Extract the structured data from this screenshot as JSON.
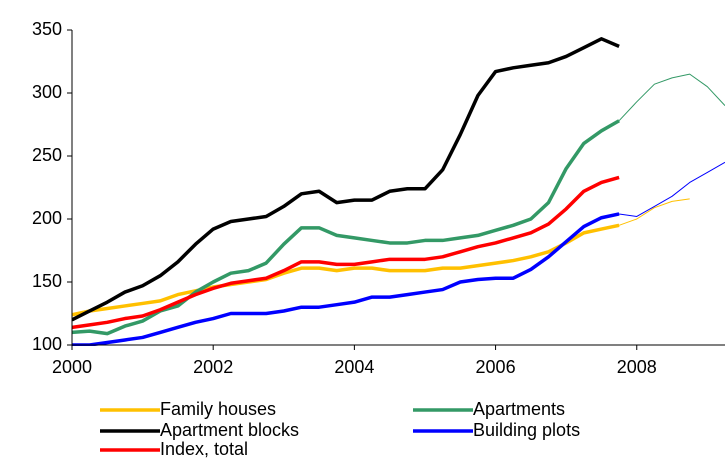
{
  "chart_data": {
    "type": "line",
    "x": [
      2000,
      2000.25,
      2000.5,
      2000.75,
      2001,
      2001.25,
      2001.5,
      2001.75,
      2002,
      2002.25,
      2002.5,
      2002.75,
      2003,
      2003.25,
      2003.5,
      2003.75,
      2004,
      2004.25,
      2004.5,
      2004.75,
      2005,
      2005.25,
      2005.5,
      2005.75,
      2006,
      2006.25,
      2006.5,
      2006.75,
      2007,
      2007.25,
      2007.5,
      2007.75,
      2008,
      2008.25,
      2008.5,
      2008.75,
      2009,
      2009.25
    ],
    "xlim": [
      2000,
      2009.25
    ],
    "xticks": [
      2000,
      2002,
      2004,
      2006,
      2008
    ],
    "ylim": [
      100,
      350
    ],
    "yticks": [
      100,
      150,
      200,
      250,
      300,
      350
    ],
    "series": [
      {
        "name": "Family houses",
        "color": "#FFC000",
        "values": [
          124,
          127,
          129,
          131,
          133,
          135,
          140,
          143,
          146,
          148,
          150,
          152,
          157,
          161,
          161,
          159,
          161,
          161,
          159,
          159,
          159,
          161,
          161,
          163,
          165,
          167,
          170,
          174,
          181,
          189,
          192,
          195,
          null,
          null,
          null,
          null,
          null,
          null
        ],
        "forecast_values": [
          null,
          null,
          null,
          null,
          null,
          null,
          null,
          null,
          null,
          null,
          null,
          null,
          null,
          null,
          null,
          null,
          null,
          null,
          null,
          null,
          null,
          null,
          null,
          null,
          null,
          null,
          null,
          null,
          null,
          null,
          null,
          195,
          200,
          209,
          214,
          216,
          null,
          null
        ]
      },
      {
        "name": "Apartments",
        "color": "#339966",
        "values": [
          110,
          111,
          109,
          115,
          119,
          127,
          131,
          142,
          150,
          157,
          159,
          165,
          180,
          193,
          193,
          187,
          185,
          183,
          181,
          181,
          183,
          183,
          185,
          187,
          191,
          195,
          200,
          213,
          240,
          260,
          270,
          278,
          null,
          null,
          null,
          null,
          null,
          null
        ],
        "forecast_values": [
          null,
          null,
          null,
          null,
          null,
          null,
          null,
          null,
          null,
          null,
          null,
          null,
          null,
          null,
          null,
          null,
          null,
          null,
          null,
          null,
          null,
          null,
          null,
          null,
          null,
          null,
          null,
          null,
          null,
          null,
          null,
          278,
          293,
          307,
          312,
          315,
          305,
          290
        ]
      },
      {
        "name": "Apartment blocks",
        "color": "#000000",
        "values": [
          120,
          127,
          134,
          142,
          147,
          155,
          166,
          180,
          192,
          198,
          200,
          202,
          210,
          220,
          222,
          213,
          215,
          215,
          222,
          224,
          224,
          239,
          267,
          298,
          317,
          320,
          322,
          324,
          329,
          336,
          343,
          337,
          null,
          null,
          null,
          null,
          null,
          null
        ]
      },
      {
        "name": "Building plots",
        "color": "#0000FF",
        "values": [
          100,
          100,
          102,
          104,
          106,
          110,
          114,
          118,
          121,
          125,
          125,
          125,
          127,
          130,
          130,
          132,
          134,
          138,
          138,
          140,
          142,
          144,
          150,
          152,
          153,
          153,
          160,
          170,
          182,
          194,
          201,
          204,
          null,
          null,
          null,
          null,
          null,
          null
        ],
        "forecast_values": [
          null,
          null,
          null,
          null,
          null,
          null,
          null,
          null,
          null,
          null,
          null,
          null,
          null,
          null,
          null,
          null,
          null,
          null,
          null,
          null,
          null,
          null,
          null,
          null,
          null,
          null,
          null,
          null,
          null,
          null,
          null,
          204,
          202,
          210,
          218,
          229,
          237,
          245
        ]
      },
      {
        "name": "Index, total",
        "color": "#FF0000",
        "values": [
          114,
          116,
          118,
          121,
          123,
          128,
          134,
          140,
          145,
          149,
          151,
          153,
          159,
          166,
          166,
          164,
          164,
          166,
          168,
          168,
          168,
          170,
          174,
          178,
          181,
          185,
          189,
          196,
          208,
          222,
          229,
          233,
          null,
          null,
          null,
          null,
          null,
          null
        ]
      }
    ]
  }
}
